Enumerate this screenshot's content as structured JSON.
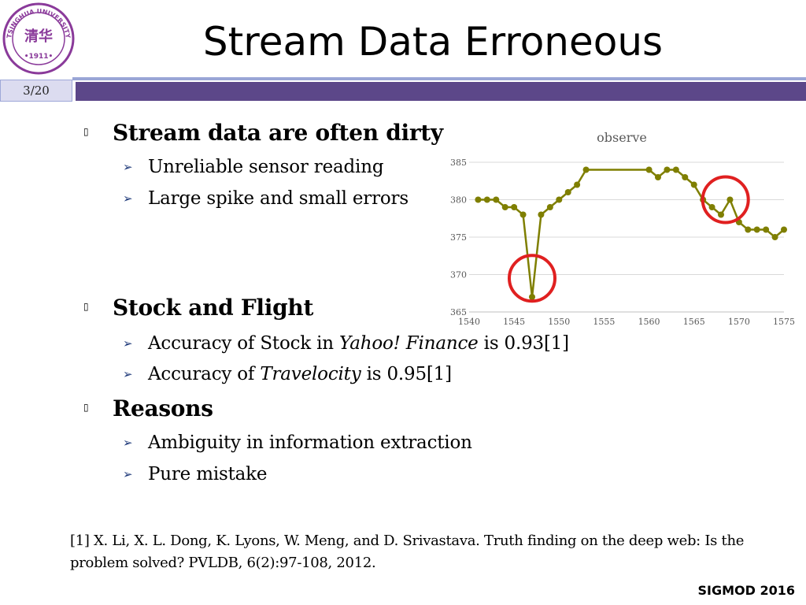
{
  "logo": {
    "icon": "tsinghua-university-seal",
    "text": "TSINGHUA UNIVERSITY 1911",
    "color": "#8a3a9a"
  },
  "slide": {
    "title": "Stream Data Erroneous",
    "page_number": "3/20",
    "bullets": [
      {
        "text": "Stream data are often dirty",
        "subs": [
          "Unreliable sensor reading",
          "Large spike and small errors"
        ]
      },
      {
        "text": "Stock and Flight",
        "subs": [
          {
            "pre": "Accuracy of Stock in ",
            "em": "Yahoo! Finance",
            "post": " is 0.93[1]"
          },
          {
            "pre": "Accuracy of ",
            "em": "Travelocity",
            "post": " is 0.95[1]"
          }
        ]
      },
      {
        "text": "Reasons",
        "subs": [
          "Ambiguity in information extraction",
          "Pure mistake"
        ]
      }
    ],
    "reference": "[1] X. Li, X. L. Dong, K. Lyons, W. Meng, and D. Srivastava. Truth finding on the deep web: Is the problem solved? PVLDB, 6(2):97-108, 2012.",
    "conference": "SIGMOD 2016"
  },
  "colors": {
    "accent_bar": "#5c4789",
    "series": "#7f7f00",
    "highlight_circle": "#e02020"
  },
  "chart_data": {
    "type": "line",
    "title": "observe",
    "xlabel": "",
    "ylabel": "",
    "xlim": [
      1540,
      1575
    ],
    "ylim": [
      365,
      385
    ],
    "xticks": [
      1540,
      1545,
      1550,
      1555,
      1560,
      1565,
      1570,
      1575
    ],
    "yticks": [
      365,
      370,
      375,
      380,
      385
    ],
    "grid": "horizontal",
    "legend": "none",
    "series": [
      {
        "x": [
          1541,
          1542,
          1543,
          1544,
          1545,
          1546,
          1547,
          1548,
          1549,
          1550,
          1551,
          1552,
          1553,
          1560,
          1561,
          1562,
          1563,
          1564,
          1565,
          1566,
          1567,
          1568,
          1569,
          1570,
          1571,
          1572,
          1573,
          1574,
          1575
        ],
        "values": [
          380,
          380,
          380,
          379,
          379,
          378,
          367,
          378,
          379,
          380,
          381,
          382,
          384,
          384,
          383,
          384,
          384,
          383,
          382,
          380,
          379,
          378,
          380,
          377,
          376,
          376,
          376,
          375,
          376
        ]
      }
    ],
    "annotations": [
      {
        "type": "circle",
        "x": 1547,
        "y": 369.5,
        "meaning": "large spike"
      },
      {
        "type": "circle",
        "x": 1568.5,
        "y": 380,
        "meaning": "small errors"
      }
    ]
  }
}
